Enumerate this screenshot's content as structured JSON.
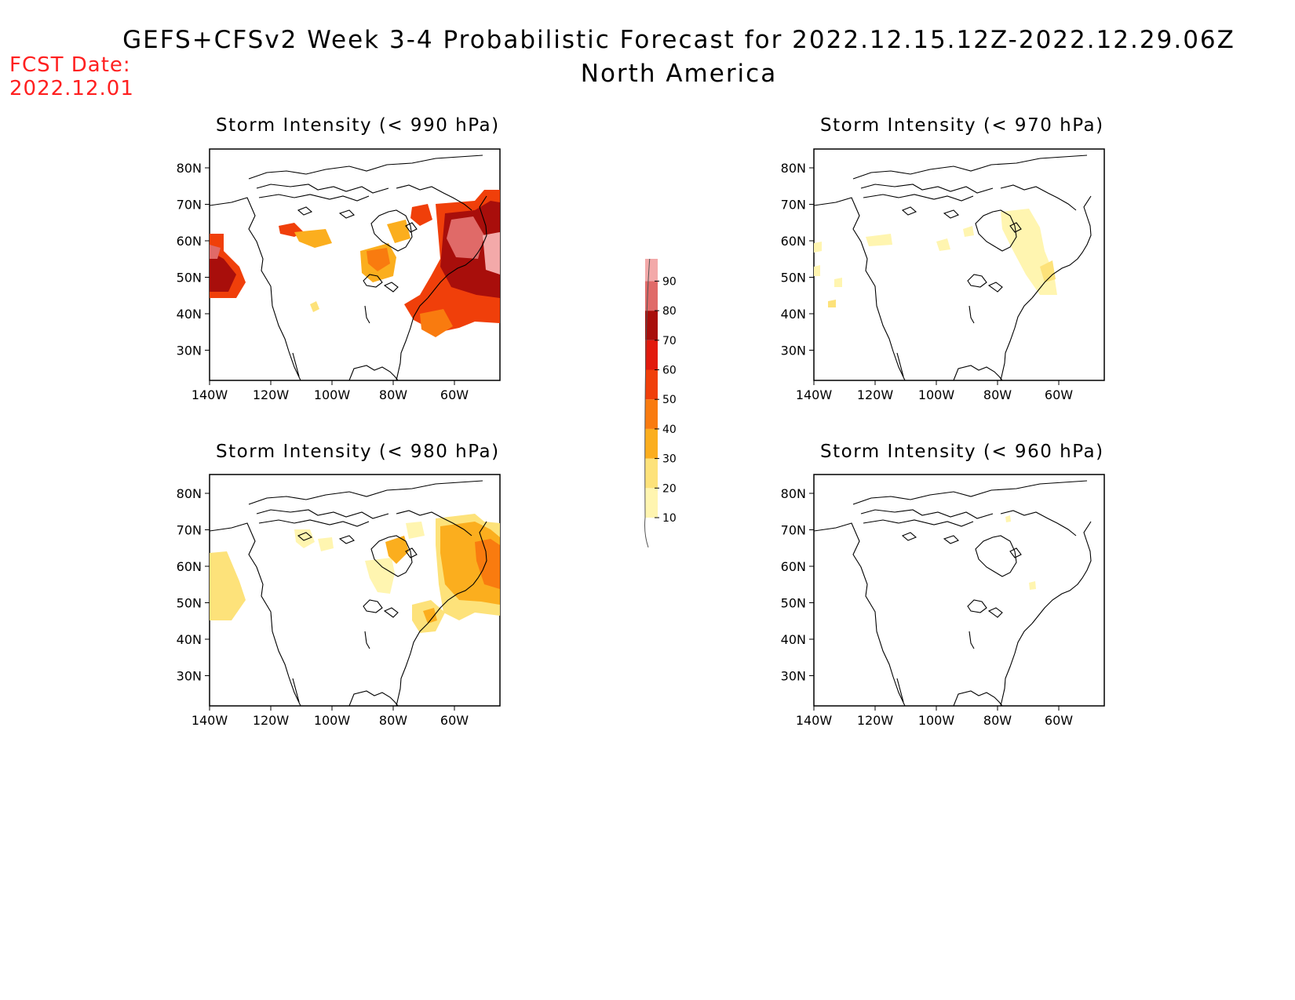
{
  "title": {
    "line1": "GEFS+CFSv2 Week 3-4 Probabilistic Forecast for 2022.12.15.12Z-2022.12.29.06Z",
    "line2": "North America"
  },
  "forecast_date": {
    "label": "FCST Date:",
    "value": "2022.12.01"
  },
  "axes": {
    "lat_labels": [
      "80N",
      "70N",
      "60N",
      "50N",
      "40N",
      "30N"
    ],
    "lon_labels": [
      "140W",
      "120W",
      "100W",
      "80W",
      "60W"
    ]
  },
  "colorbar": {
    "levels": [
      "10",
      "20",
      "30",
      "40",
      "50",
      "60",
      "70",
      "80",
      "90"
    ],
    "colors": [
      "#fff5b0",
      "#fde27a",
      "#fbae1e",
      "#f97b0f",
      "#f03f0a",
      "#e2190c",
      "#a80e0b",
      "#e06a68",
      "#f3a9a9",
      "#fde3e3"
    ]
  },
  "panels": [
    {
      "id": "p990",
      "title": "Storm Intensity (< 990 hPa)"
    },
    {
      "id": "p970",
      "title": "Storm Intensity (< 970 hPa)"
    },
    {
      "id": "p980",
      "title": "Storm Intensity (< 980 hPa)"
    },
    {
      "id": "p960",
      "title": "Storm Intensity (< 960 hPa)"
    }
  ]
}
